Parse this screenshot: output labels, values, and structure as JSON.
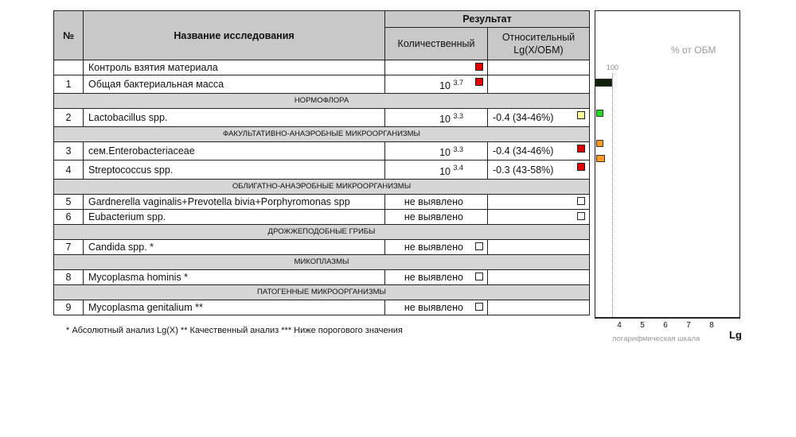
{
  "table": {
    "h_num": "№",
    "h_name": "Название исследования",
    "h_result": "Результат",
    "h_quant": "Количественный",
    "h_rel": "Относительный Lg(X/ОБМ)"
  },
  "rows": [
    {
      "type": "row",
      "num": "",
      "name": "Контроль взятия материала",
      "quant": "",
      "exp": "",
      "qsq": "#e00000",
      "rel": "",
      "rsq": ""
    },
    {
      "type": "row",
      "num": "1",
      "name": "Общая бактериальная масса",
      "quant": "10",
      "exp": "3.7",
      "qsq": "#e00000",
      "rel": "",
      "rsq": ""
    },
    {
      "type": "sec",
      "name": "НОРМОФЛОРА"
    },
    {
      "type": "row",
      "num": "2",
      "name": "Lactobacillus spp.",
      "quant": "10",
      "exp": "3.3",
      "qsq": "",
      "rel": "-0.4 (34-46%)",
      "rsq": "#ffff99"
    },
    {
      "type": "sec",
      "name": "ФАКУЛЬТАТИВНО-АНАЭРОБНЫЕ МИКРООРГАНИЗМЫ"
    },
    {
      "type": "row",
      "num": "3",
      "name": "сем.Enterobacteriaceae",
      "quant": "10",
      "exp": "3.3",
      "qsq": "",
      "rel": "-0.4 (34-46%)",
      "rsq": "#e00000"
    },
    {
      "type": "row",
      "num": "4",
      "name": "Streptococcus spp.",
      "quant": "10",
      "exp": "3.4",
      "qsq": "",
      "rel": "-0.3 (43-58%)",
      "rsq": "#e00000"
    },
    {
      "type": "sec",
      "name": "ОБЛИГАТНО-АНАЭРОБНЫЕ МИКРООРГАНИЗМЫ"
    },
    {
      "type": "row",
      "num": "5",
      "name": "Gardnerella vaginalis+Prevotella bivia+Porphyromonas spp",
      "quant": "не выявлено",
      "exp": "",
      "qsq": "",
      "rel": "",
      "rsq": "#ffffff"
    },
    {
      "type": "row",
      "num": "6",
      "name": "Eubacterium spp.",
      "quant": "не выявлено",
      "exp": "",
      "qsq": "",
      "rel": "",
      "rsq": "#ffffff"
    },
    {
      "type": "sec",
      "name": "ДРОЖЖЕПОДОБНЫЕ ГРИБЫ"
    },
    {
      "type": "row",
      "num": "7",
      "name": "Candida spp. *",
      "quant": "не выявлено",
      "exp": "",
      "qsq": "#ffffff",
      "rel": "",
      "rsq": ""
    },
    {
      "type": "sec",
      "name": "МИКОПЛАЗМЫ"
    },
    {
      "type": "row",
      "num": "8",
      "name": "Mycoplasma hominis *",
      "quant": "не выявлено",
      "exp": "",
      "qsq": "#ffffff",
      "rel": "",
      "rsq": ""
    },
    {
      "type": "sec",
      "name": "ПАТОГЕННЫЕ МИКРООРГАНИЗМЫ"
    },
    {
      "type": "row",
      "num": "9",
      "name": "Mycoplasma genitalium **",
      "quant": "не выявлено",
      "exp": "",
      "qsq": "#ffffff",
      "rel": "",
      "rsq": ""
    }
  ],
  "chart": {
    "title": "% от ОБМ",
    "ref_label": "100",
    "ref_value": 3.7,
    "ticks": [
      "4",
      "5",
      "6",
      "7",
      "8"
    ],
    "axis_label": "Lg",
    "scale_label": "логарифмическая шкала",
    "bars": [
      {
        "row": 1,
        "percent": 100,
        "color": "#0f1f0a"
      },
      {
        "row": 3,
        "percent": 40,
        "color": "#22dd22"
      },
      {
        "row": 5,
        "percent": 40,
        "color": "#ff9922"
      },
      {
        "row": 6,
        "percent": 50,
        "color": "#ff9922"
      }
    ]
  },
  "footnote": "*  Абсолютный анализ Lg(X)    ** Качественный анализ   *** Ниже порогового значения"
}
